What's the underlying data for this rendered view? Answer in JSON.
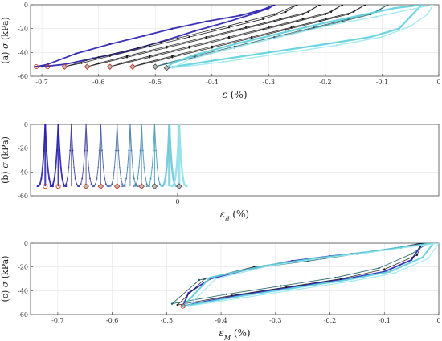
{
  "chart_data": [
    {
      "id": "a",
      "type": "line",
      "panel_label": "(a)",
      "ylabel_symbol": "σ",
      "ylabel_unit": "(kPa)",
      "xlabel_symbol": "ε",
      "xlabel_unit": "(%)",
      "xlim": [
        -0.72,
        0
      ],
      "ylim": [
        -60,
        0
      ],
      "x_ticks": [
        -0.7,
        -0.6,
        -0.5,
        -0.4,
        -0.3,
        -0.2,
        -0.1,
        0
      ],
      "x_tick_labels": [
        "-0.7",
        "-0.6",
        "-0.5",
        "-0.4",
        "-0.3",
        "-0.2",
        "-0.1",
        "0"
      ],
      "y_ticks": [
        0,
        -20,
        -40,
        -60
      ],
      "y_tick_labels": [
        "0",
        "-20",
        "-40",
        "-60"
      ],
      "grid": true,
      "series": [
        {
          "color": "#2a1fb0",
          "width": 1.8,
          "x": [
            -0.71,
            -0.69,
            -0.64,
            -0.58,
            -0.52,
            -0.47,
            -0.41,
            -0.35,
            -0.31,
            -0.29,
            -0.3,
            -0.33,
            -0.37,
            -0.43,
            -0.49,
            -0.55,
            -0.61,
            -0.66,
            -0.7
          ],
          "y": [
            -52,
            -50,
            -41,
            -33,
            -26,
            -20,
            -14,
            -9,
            -4,
            0,
            -3,
            -8,
            -14,
            -22,
            -31,
            -39,
            -45,
            -50,
            -52
          ]
        },
        {
          "color": "#1a1a1a",
          "width": 0.8,
          "x": [
            -0.66,
            -0.6,
            -0.53,
            -0.46,
            -0.4,
            -0.34,
            -0.29,
            -0.25,
            -0.27,
            -0.31,
            -0.37,
            -0.44,
            -0.51,
            -0.58,
            -0.63,
            -0.66
          ],
          "y": [
            -52,
            -44,
            -36,
            -28,
            -21,
            -14,
            -8,
            0,
            -6,
            -12,
            -19,
            -27,
            -35,
            -43,
            -49,
            -52
          ]
        },
        {
          "color": "#1a1a1a",
          "width": 0.8,
          "x": [
            -0.62,
            -0.55,
            -0.48,
            -0.41,
            -0.35,
            -0.29,
            -0.24,
            -0.21,
            -0.23,
            -0.28,
            -0.34,
            -0.41,
            -0.48,
            -0.55,
            -0.6,
            -0.62
          ],
          "y": [
            -52,
            -44,
            -36,
            -28,
            -21,
            -14,
            -8,
            0,
            -6,
            -12,
            -19,
            -27,
            -35,
            -43,
            -49,
            -52
          ]
        },
        {
          "color": "#1a1a1a",
          "width": 0.8,
          "x": [
            -0.58,
            -0.51,
            -0.44,
            -0.37,
            -0.31,
            -0.25,
            -0.2,
            -0.17,
            -0.19,
            -0.24,
            -0.3,
            -0.37,
            -0.44,
            -0.51,
            -0.56,
            -0.58
          ],
          "y": [
            -52,
            -44,
            -36,
            -28,
            -21,
            -14,
            -8,
            0,
            -6,
            -12,
            -19,
            -27,
            -35,
            -43,
            -49,
            -52
          ]
        },
        {
          "color": "#1a1a1a",
          "width": 0.8,
          "x": [
            -0.54,
            -0.47,
            -0.4,
            -0.33,
            -0.27,
            -0.21,
            -0.16,
            -0.13,
            -0.15,
            -0.2,
            -0.26,
            -0.33,
            -0.4,
            -0.47,
            -0.52,
            -0.54
          ],
          "y": [
            -52,
            -44,
            -36,
            -28,
            -21,
            -14,
            -8,
            0,
            -6,
            -12,
            -19,
            -27,
            -35,
            -43,
            -49,
            -52
          ]
        },
        {
          "color": "#1f5f6a",
          "width": 0.9,
          "x": [
            -0.5,
            -0.43,
            -0.36,
            -0.29,
            -0.23,
            -0.17,
            -0.12,
            -0.09,
            -0.11,
            -0.16,
            -0.22,
            -0.29,
            -0.36,
            -0.43,
            -0.48,
            -0.5
          ],
          "y": [
            -52,
            -44,
            -36,
            -28,
            -21,
            -14,
            -8,
            0,
            -6,
            -12,
            -19,
            -27,
            -35,
            -43,
            -49,
            -52
          ]
        },
        {
          "color": "#5fd0de",
          "width": 2.2,
          "x": [
            -0.48,
            -0.4,
            -0.3,
            -0.2,
            -0.12,
            -0.07,
            -0.05,
            -0.03,
            -0.08,
            -0.13,
            -0.2,
            -0.28,
            -0.36,
            -0.43,
            -0.47,
            -0.48
          ],
          "y": [
            -53,
            -47,
            -40,
            -33,
            -27,
            -20,
            -10,
            0,
            -3,
            -8,
            -15,
            -24,
            -33,
            -42,
            -49,
            -53
          ]
        },
        {
          "color": "#9fe8f0",
          "width": 1.4,
          "x": [
            -0.47,
            -0.38,
            -0.28,
            -0.18,
            -0.1,
            -0.05,
            -0.02,
            -0.01,
            -0.05,
            -0.11,
            -0.19,
            -0.28,
            -0.37,
            -0.44,
            -0.47
          ],
          "y": [
            -53,
            -48,
            -41,
            -34,
            -27,
            -18,
            -8,
            0,
            -4,
            -10,
            -17,
            -27,
            -37,
            -46,
            -53
          ]
        }
      ],
      "markers": [
        {
          "x": -0.71,
          "y": -52,
          "kind": "circle",
          "color": "#c0392b"
        },
        {
          "x": -0.69,
          "y": -52,
          "kind": "circle",
          "color": "#c0392b"
        },
        {
          "x": -0.66,
          "y": -52,
          "kind": "diamond",
          "color": "#c0392b"
        },
        {
          "x": -0.62,
          "y": -52,
          "kind": "diamond",
          "color": "#c0392b"
        },
        {
          "x": -0.58,
          "y": -52,
          "kind": "diamond",
          "color": "#c0392b"
        },
        {
          "x": -0.54,
          "y": -52,
          "kind": "diamond",
          "color": "#c0392b"
        },
        {
          "x": -0.5,
          "y": -52,
          "kind": "diamond",
          "color": "#555555"
        },
        {
          "x": -0.48,
          "y": -53,
          "kind": "diamond",
          "color": "#555555"
        }
      ]
    },
    {
      "id": "b",
      "type": "line",
      "panel_label": "(b)",
      "ylabel_symbol": "σ",
      "ylabel_unit": "(kPa)",
      "xlabel_symbol": "ε",
      "xlabel_sub": "d",
      "xlabel_unit": "(%)",
      "xlim": [
        -0.045,
        0.08
      ],
      "ylim": [
        -60,
        0
      ],
      "x_ticks": [
        0
      ],
      "x_tick_labels": [
        "0"
      ],
      "y_ticks": [
        0,
        -20,
        -40,
        -60
      ],
      "y_tick_labels": [
        "0",
        "-20",
        "-40",
        "-60"
      ],
      "grid": true,
      "spike_centers": [
        -0.0405,
        -0.0365,
        -0.0325,
        -0.028,
        -0.0235,
        -0.0185,
        -0.0145,
        -0.011,
        -0.007,
        -0.0025,
        0.0005
      ],
      "spike_colors": [
        "#2a1fb0",
        "#2a1fb0",
        "#3a3aa0",
        "#4a4aa0",
        "#4a5fa5",
        "#4a6fa8",
        "#4a7fb0",
        "#4a8fb5",
        "#4a9fba",
        "#6fc8d8",
        "#8fe0ea"
      ],
      "spike_half_width": 0.0015,
      "markers": [
        {
          "x": -0.0405,
          "y": -52,
          "kind": "circle",
          "color": "#c0392b"
        },
        {
          "x": -0.0365,
          "y": -52,
          "kind": "circle",
          "color": "#c0392b"
        },
        {
          "x": -0.028,
          "y": -52,
          "kind": "diamond",
          "color": "#c0392b"
        },
        {
          "x": -0.0235,
          "y": -52,
          "kind": "diamond",
          "color": "#c0392b"
        },
        {
          "x": -0.0185,
          "y": -52,
          "kind": "diamond",
          "color": "#c0392b"
        },
        {
          "x": -0.011,
          "y": -52,
          "kind": "diamond",
          "color": "#c0392b"
        },
        {
          "x": -0.007,
          "y": -52,
          "kind": "diamond",
          "color": "#555555"
        },
        {
          "x": 0.0005,
          "y": -52,
          "kind": "diamond",
          "color": "#555555"
        }
      ]
    },
    {
      "id": "c",
      "type": "line",
      "panel_label": "(c)",
      "ylabel_symbol": "σ",
      "ylabel_unit": "(kPa)",
      "xlabel_symbol": "ε",
      "xlabel_sub": "M",
      "xlabel_unit": "(%)",
      "xlim": [
        -0.75,
        0
      ],
      "ylim": [
        -60,
        0
      ],
      "x_ticks": [
        -0.7,
        -0.6,
        -0.5,
        -0.4,
        -0.3,
        -0.2,
        -0.1,
        0
      ],
      "x_tick_labels": [
        "-0.7",
        "-0.6",
        "-0.5",
        "-0.4",
        "-0.3",
        "-0.2",
        "-0.1",
        "0"
      ],
      "y_ticks": [
        0,
        -20,
        -40,
        -60
      ],
      "y_tick_labels": [
        "0",
        "-20",
        "-40",
        "-60"
      ],
      "grid": true,
      "series": [
        {
          "color": "#2a1fb0",
          "width": 1.8,
          "x": [
            -0.47,
            -0.45,
            -0.37,
            -0.27,
            -0.17,
            -0.1,
            -0.05,
            -0.03,
            -0.05,
            -0.12,
            -0.2,
            -0.27,
            -0.35,
            -0.42,
            -0.46,
            -0.47
          ],
          "y": [
            -53,
            -51,
            -44,
            -37,
            -30,
            -24,
            -14,
            0,
            -2,
            -7,
            -11,
            -15,
            -22,
            -30,
            -42,
            -53
          ]
        },
        {
          "color": "#1a1a1a",
          "width": 0.8,
          "x": [
            -0.48,
            -0.38,
            -0.28,
            -0.18,
            -0.1,
            -0.04,
            -0.03,
            -0.08,
            -0.16,
            -0.24,
            -0.34,
            -0.43,
            -0.48
          ],
          "y": [
            -52,
            -44,
            -37,
            -30,
            -22,
            -10,
            0,
            -4,
            -9,
            -14,
            -20,
            -30,
            -52
          ]
        },
        {
          "color": "#1f5f6a",
          "width": 0.9,
          "x": [
            -0.49,
            -0.39,
            -0.29,
            -0.19,
            -0.11,
            -0.05,
            -0.02,
            -0.07,
            -0.15,
            -0.24,
            -0.34,
            -0.44,
            -0.49
          ],
          "y": [
            -51,
            -43,
            -36,
            -29,
            -21,
            -9,
            0,
            -4,
            -9,
            -15,
            -21,
            -31,
            -51
          ]
        },
        {
          "color": "#5fd0de",
          "width": 2.0,
          "x": [
            -0.47,
            -0.37,
            -0.27,
            -0.17,
            -0.09,
            -0.03,
            -0.01,
            -0.06,
            -0.14,
            -0.23,
            -0.32,
            -0.42,
            -0.47
          ],
          "y": [
            -53,
            -45,
            -38,
            -31,
            -24,
            -12,
            0,
            -3,
            -8,
            -13,
            -19,
            -29,
            -53
          ]
        },
        {
          "color": "#9fe8f0",
          "width": 1.2,
          "x": [
            -0.46,
            -0.36,
            -0.26,
            -0.16,
            -0.08,
            -0.02,
            0,
            -0.05,
            -0.13,
            -0.22,
            -0.31,
            -0.41,
            -0.46
          ],
          "y": [
            -53,
            -46,
            -39,
            -32,
            -25,
            -13,
            0,
            -3,
            -8,
            -13,
            -19,
            -30,
            -53
          ]
        }
      ],
      "markers": [
        {
          "x": -0.47,
          "y": -53,
          "kind": "circle",
          "color": "#c0392b"
        }
      ]
    }
  ]
}
